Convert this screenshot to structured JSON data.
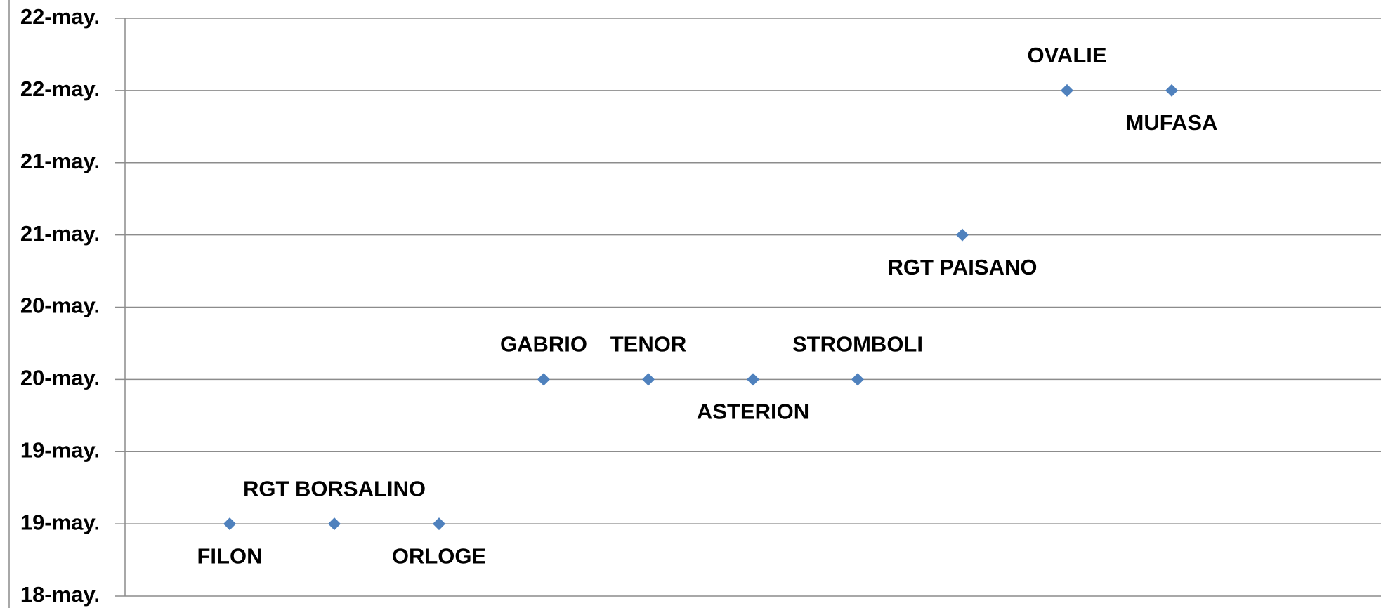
{
  "chart_data": {
    "type": "scatter",
    "categories": [
      "FILON",
      "RGT BORSALINO",
      "ORLOGE",
      "GABRIO",
      "TENOR",
      "ASTERION",
      "STROMBOLI",
      "RGT PAISANO",
      "OVALIE",
      "MUFASA"
    ],
    "values": [
      19,
      19,
      19,
      20,
      20,
      20,
      20,
      21,
      22,
      22
    ],
    "color": "#4f81bd",
    "ylim": [
      18.5,
      22.5
    ],
    "yticks": [
      {
        "value": 18.5,
        "label": "18-may."
      },
      {
        "value": 19,
        "label": "19-may."
      },
      {
        "value": 19.5,
        "label": "19-may."
      },
      {
        "value": 20,
        "label": "20-may."
      },
      {
        "value": 20.5,
        "label": "20-may."
      },
      {
        "value": 21,
        "label": "21-may."
      },
      {
        "value": 21.5,
        "label": "21-may."
      },
      {
        "value": 22,
        "label": "22-may."
      },
      {
        "value": 22.5,
        "label": "22-may."
      }
    ],
    "grid": true
  }
}
